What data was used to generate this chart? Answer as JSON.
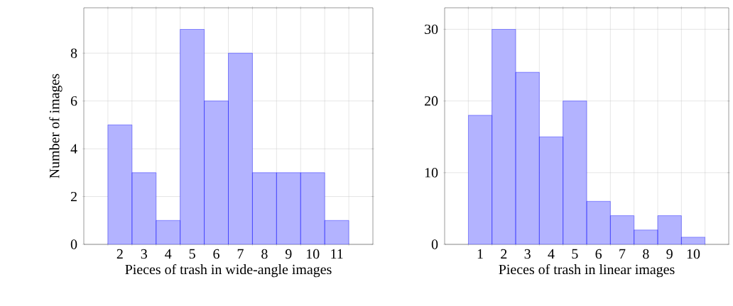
{
  "chart_data": [
    {
      "type": "histogram",
      "xlabel": "Pieces of trash in wide-angle images",
      "ylabel": "Number of images",
      "bins": [
        1.5,
        2.5,
        3.5,
        4.5,
        5.5,
        6.5,
        7.5,
        8.5,
        9.5,
        10.5,
        11.5
      ],
      "values": [
        5,
        3,
        1,
        9,
        6,
        8,
        3,
        3,
        3,
        1
      ],
      "color": "#b3b3ff",
      "xlim": [
        0.5,
        12.5
      ],
      "ylim": [
        0,
        9.9
      ],
      "xticks": [
        {
          "value": 1.5,
          "label": null
        },
        {
          "value": 2.5,
          "label": null
        },
        {
          "value": 3.5,
          "label": null
        },
        {
          "value": 4.5,
          "label": null
        },
        {
          "value": 5.5,
          "label": null
        },
        {
          "value": 6.5,
          "label": null
        },
        {
          "value": 7.5,
          "label": null
        },
        {
          "value": 8.5,
          "label": null
        },
        {
          "value": 9.5,
          "label": null
        },
        {
          "value": 10.5,
          "label": null
        },
        {
          "value": 11.5,
          "label": null
        },
        2,
        3,
        4,
        5,
        6,
        7,
        8,
        9,
        10,
        11
      ],
      "yticks": [
        0,
        2,
        4,
        6,
        8
      ],
      "grid": true
    },
    {
      "type": "histogram",
      "xlabel": "Pieces of trash in linear images",
      "bins": [
        0.5,
        1.5,
        2.5,
        3.5,
        4.5,
        5.5,
        6.5,
        7.5,
        8.5,
        9.5,
        10.5
      ],
      "values": [
        18,
        30,
        24,
        15,
        20,
        6,
        4,
        2,
        4,
        1
      ],
      "color": "#b3b3ff",
      "xlim": [
        -0.5,
        11.5
      ],
      "ylim": [
        0,
        33
      ],
      "xticks": [
        {
          "value": 0.5,
          "label": null
        },
        {
          "value": 1.5,
          "label": null
        },
        {
          "value": 2.5,
          "label": null
        },
        {
          "value": 3.5,
          "label": null
        },
        {
          "value": 4.5,
          "label": null
        },
        {
          "value": 5.5,
          "label": null
        },
        {
          "value": 6.5,
          "label": null
        },
        {
          "value": 7.5,
          "label": null
        },
        {
          "value": 8.5,
          "label": null
        },
        {
          "value": 9.5,
          "label": null
        },
        {
          "value": 10.5,
          "label": null
        },
        1,
        2,
        3,
        4,
        5,
        6,
        7,
        8,
        9,
        10
      ],
      "yticks": [
        0,
        10,
        20,
        30
      ],
      "grid": true
    }
  ]
}
